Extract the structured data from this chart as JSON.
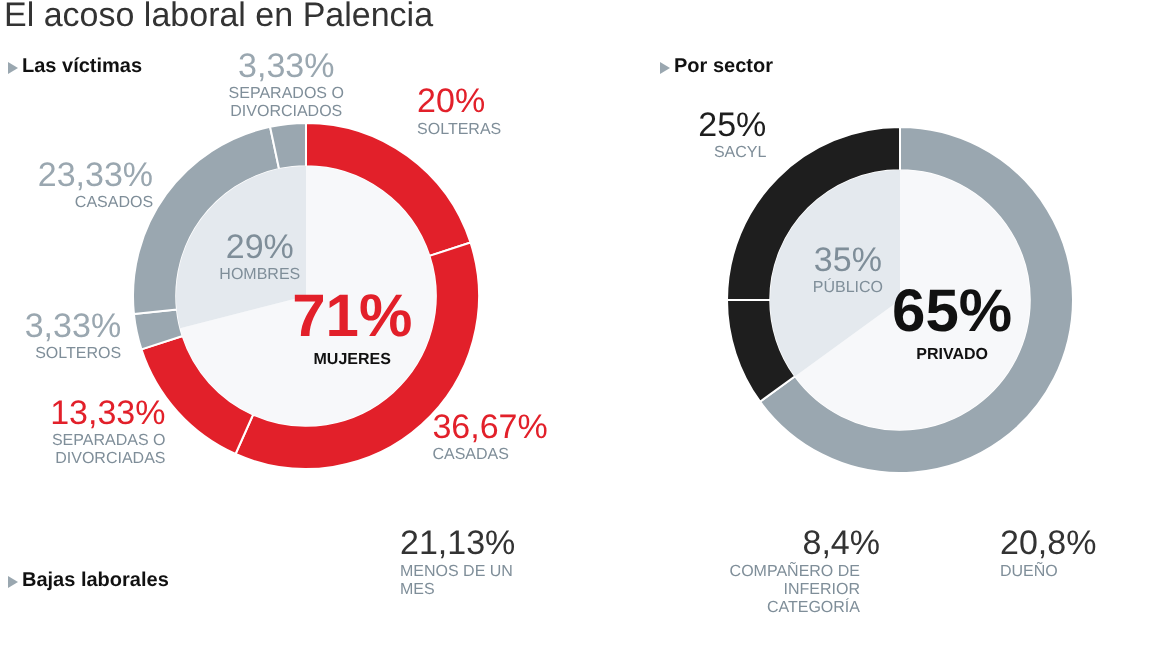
{
  "chart_data": [
    {
      "type": "donut",
      "title": "El acoso laboral en Palencia",
      "subtitle": "Las víctimas",
      "categories": [
        "SOLTERAS",
        "CASADAS",
        "SEPARADAS O DIVORCIADAS",
        "SOLTEROS",
        "CASADOS",
        "SEPARADOS O DIVORCIADOS"
      ],
      "values": [
        20,
        36.67,
        13.33,
        3.33,
        23.33,
        3.33
      ],
      "colors": [
        "#e2202a",
        "#e2202a",
        "#e2202a",
        "#9aa7b0",
        "#9aa7b0",
        "#9aa7b0"
      ],
      "value_labels": [
        "20%",
        "36,67%",
        "13,33%",
        "3,33%",
        "23,33%",
        "3,33%"
      ]
    },
    {
      "type": "pie",
      "categories": [
        "MUJERES",
        "HOMBRES"
      ],
      "values": [
        71,
        29
      ],
      "colors": [
        "#f7f8fa",
        "#e4e9ee"
      ],
      "value_labels": [
        "71%",
        "29%"
      ]
    },
    {
      "type": "donut",
      "subtitle": "Por sector",
      "categories": [
        null,
        null,
        "SACYL"
      ],
      "values": [
        65,
        10,
        25
      ],
      "colors": [
        "#9aa7b0",
        "#1e1e1e",
        "#1e1e1e"
      ],
      "value_labels": [
        null,
        null,
        "25%"
      ]
    },
    {
      "type": "pie",
      "categories": [
        "PRIVADO",
        "PÚBLICO"
      ],
      "values": [
        65,
        35
      ],
      "colors": [
        "#f7f8fa",
        "#e4e9ee"
      ],
      "value_labels": [
        "65%",
        "35%"
      ]
    },
    {
      "type": "other",
      "subtitle": "Bajas laborales",
      "annotations": [
        "21,13%",
        "MENOS DE UN MES"
      ]
    },
    {
      "type": "other",
      "annotations": [
        "8,4%",
        "COMPAÑERO DE INFERIOR CATEGORÍA",
        "20,8%",
        "DUEÑO"
      ]
    }
  ]
}
